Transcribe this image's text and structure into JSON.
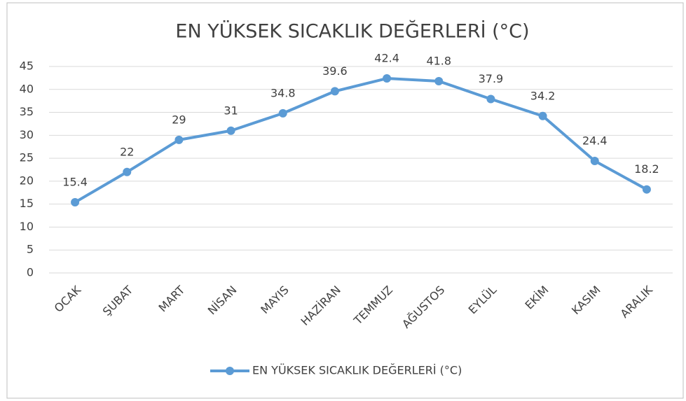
{
  "chart_data": {
    "type": "line",
    "title": "EN YÜKSEK SICAKLIK DEĞERLERİ (°C)",
    "categories": [
      "OCAK",
      "ŞUBAT",
      "MART",
      "NİSAN",
      "MAYIS",
      "HAZİRAN",
      "TEMMUZ",
      "AĞUSTOS",
      "EYLÜL",
      "EKİM",
      "KASIM",
      "ARALIK"
    ],
    "series": [
      {
        "name": "EN YÜKSEK SICAKLIK DEĞERLERİ (°C)",
        "color": "#5b9bd5",
        "values": [
          15.4,
          22,
          29,
          31,
          34.8,
          39.6,
          42.4,
          41.8,
          37.9,
          34.2,
          24.4,
          18.2
        ]
      }
    ],
    "ylim": [
      0,
      45
    ],
    "yticks": [
      0,
      5,
      10,
      15,
      20,
      25,
      30,
      35,
      40,
      45
    ],
    "grid": true,
    "legend": "bottom"
  }
}
